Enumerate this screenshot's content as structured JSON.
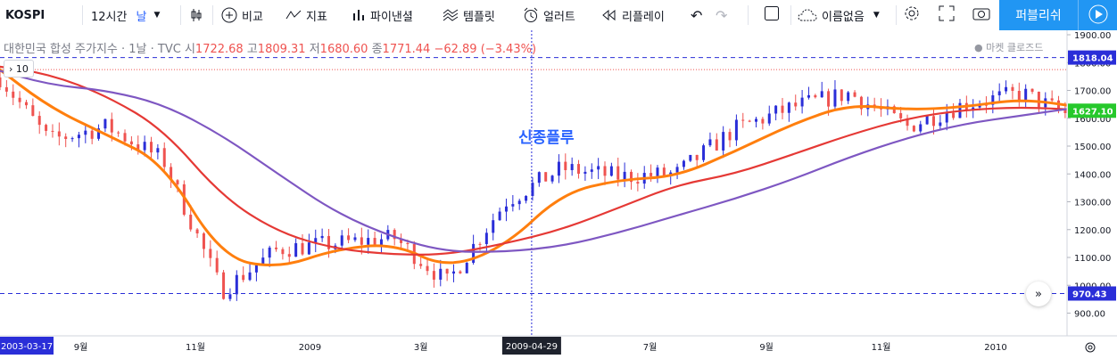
{
  "toolbar": {
    "symbol": "KOSPI",
    "interval": "12시간",
    "interval_unit": "날",
    "compare": "비교",
    "indicators": "지표",
    "pine_editor": "파이낸셜",
    "templates": "템플릿",
    "alert": "얼러트",
    "replay": "리플레이",
    "layout_name": "이름없음",
    "publish": "퍼블리쉬"
  },
  "legend": {
    "title": "대한민국 합성 주가지수 · 1날 · TVC",
    "open_label": "시",
    "open": "1722.68",
    "high_label": "고",
    "high": "1809.31",
    "low_label": "저",
    "low": "1680.60",
    "close_label": "종",
    "close": "1771.44",
    "change": "−62.89 (−3.43%)"
  },
  "market_status": "● 마켓 클로즈드",
  "collapse_label": "› 10",
  "annotation": "신종플루",
  "chart_data": {
    "type": "candlestick",
    "x_range": [
      "2008-07",
      "2010-02"
    ],
    "ylim": [
      860,
      1900
    ],
    "y_ticks": [
      900,
      1000,
      1100,
      1200,
      1300,
      1400,
      1500,
      1600,
      1700,
      1800,
      1900
    ],
    "x_ticks": [
      "9월",
      "11월",
      "2009",
      "3월",
      "7월",
      "9월",
      "11월",
      "2010"
    ],
    "x_tick_dates": [
      "2008-09",
      "2008-11",
      "2009-01",
      "2009-03",
      "2009-07",
      "2009-09",
      "2009-11",
      "2010-01"
    ],
    "price_labels": [
      {
        "value": 1818.04,
        "label": "1818.04",
        "color": "#2a2ed8"
      },
      {
        "value": 1627.1,
        "label": "1627.10",
        "color": "#26c82b"
      },
      {
        "value": 970.43,
        "label": "970.43",
        "color": "#2a2ed8"
      }
    ],
    "horizontal_lines": [
      1818.04,
      970.43
    ],
    "red_dotted_level": 1775,
    "vertical_marker": {
      "date": "2009-04-29",
      "label": "2009-04-29"
    },
    "crosshair_x_label": "2003-03-17",
    "series": [
      {
        "name": "",
        "color": "#ef5350",
        "kind": "price",
        "date": [
          "2008-07",
          "2008-08",
          "2008-09",
          "2008-10",
          "2008-11",
          "2008-12",
          "2009-01",
          "2009-02",
          "2009-03",
          "2009-04",
          "2009-05",
          "2009-06",
          "2009-07",
          "2009-08",
          "2009-09",
          "2009-10",
          "2009-11",
          "2009-12",
          "2010-01",
          "2010-02"
        ],
        "close": [
          1790,
          1520,
          1570,
          1450,
          980,
          1130,
          1150,
          1170,
          1010,
          1300,
          1420,
          1390,
          1400,
          1560,
          1640,
          1690,
          1570,
          1650,
          1690,
          1590
        ]
      },
      {
        "name": "",
        "color": "#ff7f0e",
        "kind": "ma20",
        "date": [
          "2008-07",
          "2008-08",
          "2008-09",
          "2008-10",
          "2008-11",
          "2008-12",
          "2009-01",
          "2009-02",
          "2009-03",
          "2009-04",
          "2009-05",
          "2009-06",
          "2009-07",
          "2009-08",
          "2009-09",
          "2009-10",
          "2009-11",
          "2009-12",
          "2010-01",
          "2010-02"
        ],
        "close": [
          1800,
          1640,
          1540,
          1440,
          1100,
          1060,
          1130,
          1150,
          1060,
          1140,
          1330,
          1380,
          1390,
          1480,
          1580,
          1650,
          1630,
          1640,
          1670,
          1640
        ]
      },
      {
        "name": "",
        "color": "#e53935",
        "kind": "ma60",
        "date": [
          "2008-07",
          "2008-08",
          "2008-09",
          "2008-10",
          "2008-11",
          "2008-12",
          "2009-01",
          "2009-02",
          "2009-03",
          "2009-04",
          "2009-05",
          "2009-06",
          "2009-07",
          "2009-08",
          "2009-09",
          "2009-10",
          "2009-11",
          "2009-12",
          "2010-01",
          "2010-02"
        ],
        "close": [
          1790,
          1760,
          1680,
          1560,
          1320,
          1190,
          1130,
          1110,
          1110,
          1150,
          1200,
          1280,
          1360,
          1400,
          1470,
          1540,
          1600,
          1630,
          1640,
          1630
        ]
      },
      {
        "name": "",
        "color": "#7e57c2",
        "kind": "ma120",
        "date": [
          "2008-07",
          "2008-08",
          "2008-09",
          "2008-10",
          "2008-11",
          "2008-12",
          "2009-01",
          "2009-02",
          "2009-03",
          "2009-04",
          "2009-05",
          "2009-06",
          "2009-07",
          "2009-08",
          "2009-09",
          "2009-10",
          "2009-11",
          "2009-12",
          "2010-01",
          "2010-02"
        ],
        "close": [
          1780,
          1720,
          1700,
          1650,
          1540,
          1400,
          1260,
          1170,
          1120,
          1120,
          1140,
          1190,
          1250,
          1310,
          1380,
          1460,
          1530,
          1580,
          1610,
          1640
        ]
      }
    ]
  },
  "colors": {
    "up": "#2a2ed8",
    "down": "#ef5350",
    "accent": "#2196f3"
  }
}
